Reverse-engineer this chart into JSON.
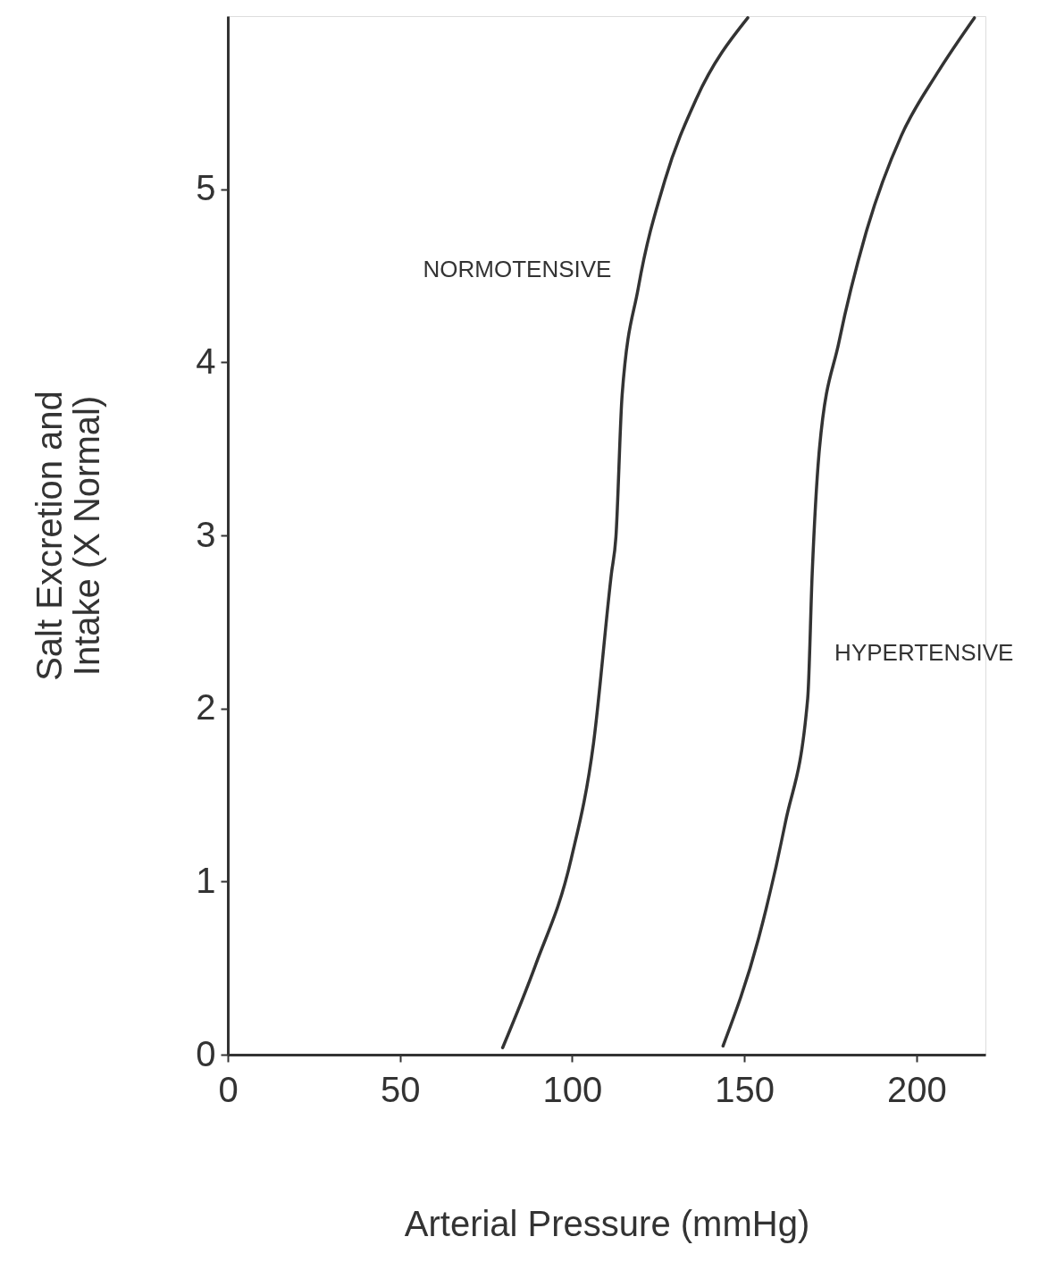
{
  "chart_data": {
    "type": "line",
    "xlabel": "Arterial Pressure (mmHg)",
    "ylabel": "Salt Excretion and\nIntake (X Normal)",
    "xlim": [
      0,
      220
    ],
    "xticks": [
      0,
      50,
      100,
      150,
      200
    ],
    "ylim": [
      0,
      6
    ],
    "yticks": [
      0,
      1,
      2,
      3,
      4,
      5
    ],
    "grid": false,
    "marker": "none",
    "line_style": "solid",
    "series": [
      {
        "name": "NORMOTENSIVE",
        "color": "#333333",
        "x": [
          79.8,
          89.4,
          99.7,
          106.2,
          111.4,
          112.7,
          114.5,
          119.2,
          126.9,
          136,
          151
        ],
        "values": [
          0.04,
          0.52,
          1.13,
          1.8,
          2.78,
          2.99,
          3.81,
          4.43,
          5.05,
          5.52,
          5.99
        ]
      },
      {
        "name": "HYPERTENSIVE",
        "color": "#333333",
        "x": [
          143.8,
          154.1,
          161.9,
          168.4,
          169.7,
          171.8,
          177.5,
          185.2,
          195.6,
          206,
          216.8
        ],
        "values": [
          0.05,
          0.67,
          1.34,
          2.06,
          2.78,
          3.5,
          4.12,
          4.74,
          5.31,
          5.67,
          5.99
        ]
      }
    ]
  }
}
